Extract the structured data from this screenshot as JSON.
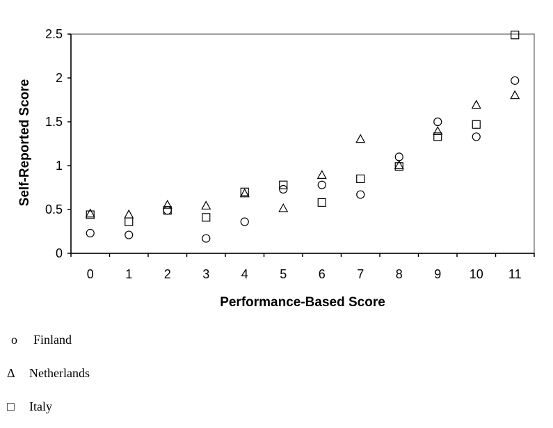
{
  "chart_data": {
    "type": "scatter",
    "title": "",
    "xlabel": "Performance-Based Score",
    "ylabel": "Self-Reported Score",
    "xlim": [
      -0.5,
      11.5
    ],
    "ylim": [
      0,
      2.5
    ],
    "x_ticks": [
      "0",
      "1",
      "2",
      "3",
      "4",
      "5",
      "6",
      "7",
      "8",
      "9",
      "10",
      "11"
    ],
    "y_ticks": [
      "0",
      "0.5",
      "1",
      "1.5",
      "2",
      "2.5"
    ],
    "grid": false,
    "legend_position": "bottom-left",
    "series": [
      {
        "name": "Finland",
        "marker": "circle",
        "x": [
          0,
          1,
          2,
          3,
          4,
          5,
          6,
          7,
          8,
          9,
          10,
          11
        ],
        "y": [
          0.23,
          0.21,
          0.49,
          0.17,
          0.36,
          0.73,
          0.78,
          0.67,
          1.1,
          1.5,
          1.33,
          1.97
        ]
      },
      {
        "name": "Netherlands",
        "marker": "triangle",
        "x": [
          0,
          1,
          2,
          3,
          4,
          5,
          6,
          7,
          8,
          9,
          10,
          11
        ],
        "y": [
          0.45,
          0.44,
          0.55,
          0.54,
          0.68,
          0.51,
          0.89,
          1.3,
          1.0,
          1.39,
          1.69,
          1.8
        ]
      },
      {
        "name": "Italy",
        "marker": "square",
        "x": [
          0,
          1,
          2,
          3,
          4,
          5,
          6,
          7,
          8,
          9,
          10,
          11
        ],
        "y": [
          0.44,
          0.36,
          0.49,
          0.41,
          0.7,
          0.78,
          0.58,
          0.85,
          0.99,
          1.33,
          1.47,
          2.49
        ]
      }
    ]
  },
  "legend": {
    "items": [
      {
        "symbol": "o",
        "label": "Finland"
      },
      {
        "symbol": "Δ",
        "label": "Netherlands"
      },
      {
        "symbol": "□",
        "label": "Italy"
      }
    ]
  }
}
